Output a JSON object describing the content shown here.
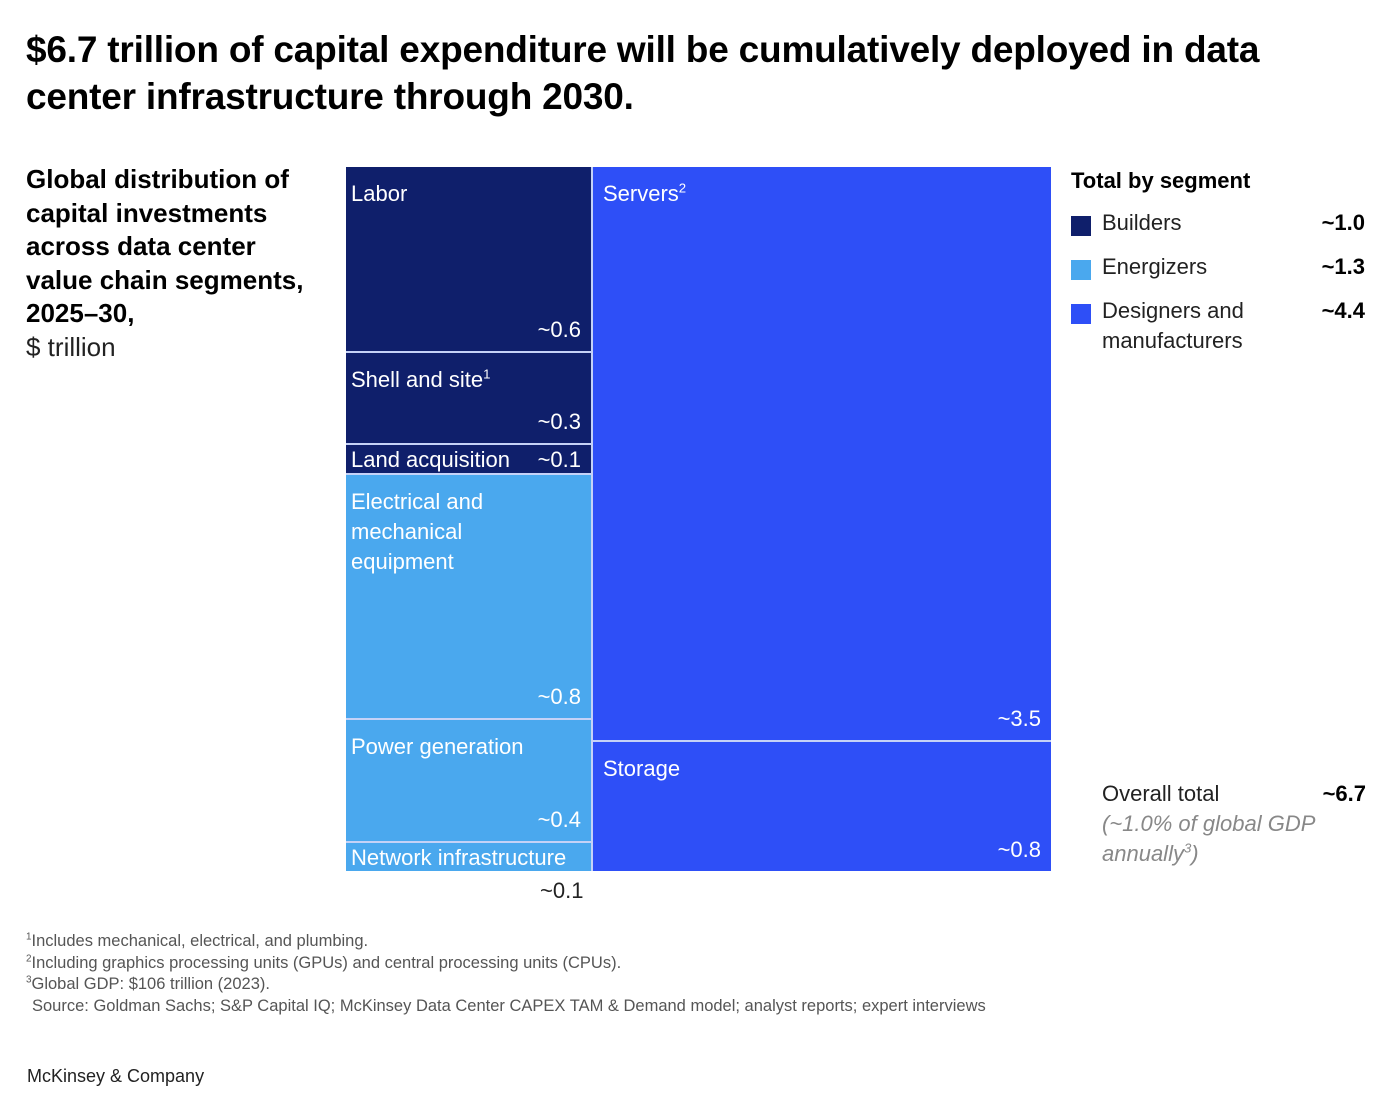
{
  "headline": "$6.7 trillion of capital expenditure will be cumulatively deployed in data center infrastructure through 2030.",
  "subtitle": {
    "main": "Global distribution of capital investments across data center value chain segments, 2025–30,",
    "unit": "$ trillion"
  },
  "colors": {
    "builders": "#0f1f6b",
    "energizers": "#4aa8ee",
    "designers": "#2e4ff7",
    "divider": "#c5d2f7"
  },
  "chart_data": {
    "type": "treemap",
    "unit": "$ trillion",
    "cells": [
      {
        "label": "Labor",
        "sup": "",
        "value": 0.6,
        "display": "~0.6",
        "segment": "builders"
      },
      {
        "label": "Shell and site",
        "sup": "1",
        "value": 0.3,
        "display": "~0.3",
        "segment": "builders"
      },
      {
        "label": "Land acquisition",
        "sup": "",
        "value": 0.1,
        "display": "~0.1",
        "segment": "builders"
      },
      {
        "label": "Electrical and mechanical equipment",
        "sup": "",
        "value": 0.8,
        "display": "~0.8",
        "segment": "energizers"
      },
      {
        "label": "Power generation",
        "sup": "",
        "value": 0.4,
        "display": "~0.4",
        "segment": "energizers"
      },
      {
        "label": "Network infrastructure",
        "sup": "",
        "value": 0.1,
        "display": "~0.1",
        "segment": "energizers"
      },
      {
        "label": "Servers",
        "sup": "2",
        "value": 3.5,
        "display": "~3.5",
        "segment": "designers"
      },
      {
        "label": "Storage",
        "sup": "",
        "value": 0.8,
        "display": "~0.8",
        "segment": "designers"
      }
    ]
  },
  "legend": {
    "title": "Total by segment",
    "items": [
      {
        "label": "Builders",
        "value": "~1.0",
        "color": "#0f1f6b"
      },
      {
        "label": "Energizers",
        "value": "~1.3",
        "color": "#4aa8ee"
      },
      {
        "label": "Designers and manufacturers",
        "value": "~4.4",
        "color": "#2e4ff7"
      }
    ]
  },
  "total": {
    "label": "Overall total",
    "value": "~6.7",
    "note": "(~1.0% of global GDP annually",
    "note_sup": "3",
    "note_end": ")"
  },
  "footnotes": {
    "f1_sup": "1",
    "f1": "Includes mechanical, electrical, and plumbing.",
    "f2_sup": "2",
    "f2": "Including graphics processing units (GPUs) and central processing units (CPUs).",
    "f3_sup": "3",
    "f3": "Global GDP: $106 trillion (2023).",
    "source": "Source: Goldman Sachs; S&P Capital IQ; McKinsey Data Center CAPEX TAM & Demand model; analyst reports; expert interviews"
  },
  "brand": "McKinsey & Company"
}
